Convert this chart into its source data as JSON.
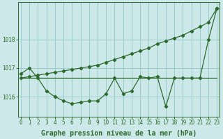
{
  "x": [
    0,
    1,
    2,
    3,
    4,
    5,
    6,
    7,
    8,
    9,
    10,
    11,
    12,
    13,
    14,
    15,
    16,
    17,
    18,
    19,
    20,
    21,
    22,
    23
  ],
  "line1": [
    1016.8,
    1017.0,
    1016.65,
    1016.2,
    1016.0,
    1015.85,
    1015.75,
    1015.8,
    1015.85,
    1015.85,
    1016.1,
    1016.65,
    1016.1,
    1016.2,
    1016.7,
    1016.65,
    1016.7,
    1015.65,
    1016.65,
    1016.65,
    1016.65,
    1016.65,
    1018.0,
    1019.1
  ],
  "line2": [
    1016.65,
    1016.65,
    1016.65,
    1016.65,
    1016.65,
    1016.65,
    1016.65,
    1016.65,
    1016.65,
    1016.65,
    1016.65,
    1016.65,
    1016.65,
    1016.65,
    1016.65,
    1016.65,
    1016.65,
    1016.65,
    1016.65,
    1016.65,
    1016.65,
    1016.65,
    1016.65,
    1016.65
  ],
  "line3": [
    1016.65,
    1016.7,
    1016.75,
    1016.8,
    1016.85,
    1016.9,
    1016.95,
    1017.0,
    1017.05,
    1017.1,
    1017.2,
    1017.3,
    1017.4,
    1017.5,
    1017.6,
    1017.7,
    1017.85,
    1017.95,
    1018.05,
    1018.15,
    1018.3,
    1018.45,
    1018.6,
    1019.1
  ],
  "line_color": "#2d6a2d",
  "bg_color": "#cce8e8",
  "grid_color": "#99cccc",
  "xlabel": "Graphe pression niveau de la mer (hPa)",
  "ylim": [
    1015.3,
    1019.3
  ],
  "yticks": [
    1016,
    1017,
    1018
  ],
  "xticks": [
    0,
    1,
    2,
    3,
    4,
    5,
    6,
    7,
    8,
    9,
    10,
    11,
    12,
    13,
    14,
    15,
    16,
    17,
    18,
    19,
    20,
    21,
    22,
    23
  ],
  "xlabel_fontsize": 7.0,
  "tick_fontsize": 5.5,
  "marker": "D",
  "markersize": 2.2,
  "linewidth": 0.9
}
